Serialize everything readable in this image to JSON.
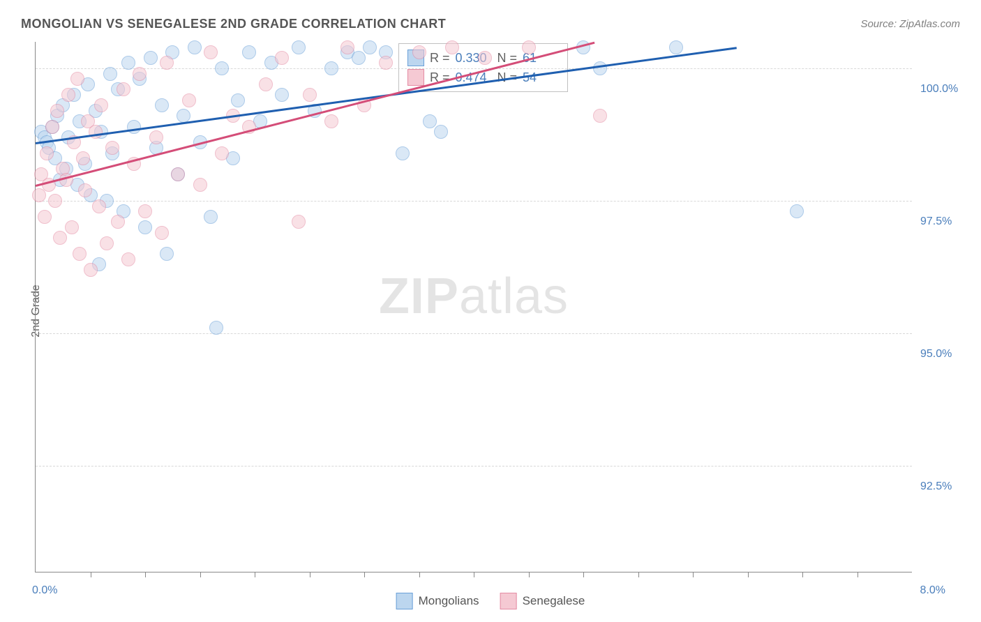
{
  "title": "MONGOLIAN VS SENEGALESE 2ND GRADE CORRELATION CHART",
  "source_label": "Source: ZipAtlas.com",
  "ylabel": "2nd Grade",
  "watermark_bold": "ZIP",
  "watermark_rest": "atlas",
  "chart": {
    "type": "scatter",
    "background_color": "#ffffff",
    "grid_color": "#d8d8d8",
    "axis_color": "#888888",
    "tick_label_color": "#4a7ebb",
    "label_color": "#606060",
    "title_color": "#555555",
    "title_fontsize": 18,
    "label_fontsize": 16,
    "marker_radius": 9,
    "marker_opacity": 0.55,
    "line_width": 3,
    "xlim": [
      0,
      8
    ],
    "ylim": [
      90.5,
      100.5
    ],
    "xtick_step": 0.5,
    "yticks": [
      92.5,
      95.0,
      97.5,
      100.0
    ],
    "ytick_format": "pct1",
    "x_min_label": "0.0%",
    "x_max_label": "8.0%",
    "series": [
      {
        "name": "Mongolians",
        "fill_color": "#bcd6ef",
        "stroke_color": "#6aa0d8",
        "swatch_fill": "#bcd6ef",
        "swatch_border": "#6aa0d8",
        "trend_color": "#1f5fb0",
        "R": "0.330",
        "N": "61",
        "trend": {
          "x1": 0.0,
          "y1": 98.6,
          "x2": 6.4,
          "y2": 100.4
        },
        "points": [
          [
            0.05,
            98.8
          ],
          [
            0.08,
            98.7
          ],
          [
            0.1,
            98.6
          ],
          [
            0.12,
            98.5
          ],
          [
            0.15,
            98.9
          ],
          [
            0.18,
            98.3
          ],
          [
            0.2,
            99.1
          ],
          [
            0.22,
            97.9
          ],
          [
            0.25,
            99.3
          ],
          [
            0.28,
            98.1
          ],
          [
            0.3,
            98.7
          ],
          [
            0.35,
            99.5
          ],
          [
            0.38,
            97.8
          ],
          [
            0.4,
            99.0
          ],
          [
            0.45,
            98.2
          ],
          [
            0.48,
            99.7
          ],
          [
            0.5,
            97.6
          ],
          [
            0.55,
            99.2
          ],
          [
            0.58,
            96.3
          ],
          [
            0.6,
            98.8
          ],
          [
            0.65,
            97.5
          ],
          [
            0.68,
            99.9
          ],
          [
            0.7,
            98.4
          ],
          [
            0.75,
            99.6
          ],
          [
            0.8,
            97.3
          ],
          [
            0.85,
            100.1
          ],
          [
            0.9,
            98.9
          ],
          [
            0.95,
            99.8
          ],
          [
            1.0,
            97.0
          ],
          [
            1.05,
            100.2
          ],
          [
            1.1,
            98.5
          ],
          [
            1.15,
            99.3
          ],
          [
            1.2,
            96.5
          ],
          [
            1.25,
            100.3
          ],
          [
            1.3,
            98.0
          ],
          [
            1.35,
            99.1
          ],
          [
            1.45,
            100.4
          ],
          [
            1.5,
            98.6
          ],
          [
            1.6,
            97.2
          ],
          [
            1.65,
            95.1
          ],
          [
            1.7,
            100.0
          ],
          [
            1.8,
            98.3
          ],
          [
            1.85,
            99.4
          ],
          [
            1.95,
            100.3
          ],
          [
            2.05,
            99.0
          ],
          [
            2.15,
            100.1
          ],
          [
            2.25,
            99.5
          ],
          [
            2.4,
            100.4
          ],
          [
            2.55,
            99.2
          ],
          [
            2.7,
            100.0
          ],
          [
            2.85,
            100.3
          ],
          [
            2.95,
            100.2
          ],
          [
            3.05,
            100.4
          ],
          [
            3.2,
            100.3
          ],
          [
            3.35,
            98.4
          ],
          [
            3.6,
            99.0
          ],
          [
            3.7,
            98.8
          ],
          [
            5.15,
            100.0
          ],
          [
            5.0,
            100.4
          ],
          [
            5.85,
            100.4
          ],
          [
            6.95,
            97.3
          ]
        ]
      },
      {
        "name": "Senegalese",
        "fill_color": "#f5c9d3",
        "stroke_color": "#e48ba3",
        "swatch_fill": "#f5c9d3",
        "swatch_border": "#e48ba3",
        "trend_color": "#d44d78",
        "R": "0.474",
        "N": "54",
        "trend": {
          "x1": 0.0,
          "y1": 97.8,
          "x2": 5.1,
          "y2": 100.5
        },
        "points": [
          [
            0.03,
            97.6
          ],
          [
            0.05,
            98.0
          ],
          [
            0.08,
            97.2
          ],
          [
            0.1,
            98.4
          ],
          [
            0.12,
            97.8
          ],
          [
            0.15,
            98.9
          ],
          [
            0.18,
            97.5
          ],
          [
            0.2,
            99.2
          ],
          [
            0.22,
            96.8
          ],
          [
            0.25,
            98.1
          ],
          [
            0.28,
            97.9
          ],
          [
            0.3,
            99.5
          ],
          [
            0.33,
            97.0
          ],
          [
            0.35,
            98.6
          ],
          [
            0.38,
            99.8
          ],
          [
            0.4,
            96.5
          ],
          [
            0.43,
            98.3
          ],
          [
            0.45,
            97.7
          ],
          [
            0.48,
            99.0
          ],
          [
            0.5,
            96.2
          ],
          [
            0.55,
            98.8
          ],
          [
            0.58,
            97.4
          ],
          [
            0.6,
            99.3
          ],
          [
            0.65,
            96.7
          ],
          [
            0.7,
            98.5
          ],
          [
            0.75,
            97.1
          ],
          [
            0.8,
            99.6
          ],
          [
            0.85,
            96.4
          ],
          [
            0.9,
            98.2
          ],
          [
            0.95,
            99.9
          ],
          [
            1.0,
            97.3
          ],
          [
            1.1,
            98.7
          ],
          [
            1.15,
            96.9
          ],
          [
            1.2,
            100.1
          ],
          [
            1.3,
            98.0
          ],
          [
            1.4,
            99.4
          ],
          [
            1.5,
            97.8
          ],
          [
            1.6,
            100.3
          ],
          [
            1.7,
            98.4
          ],
          [
            1.8,
            99.1
          ],
          [
            1.95,
            98.9
          ],
          [
            2.1,
            99.7
          ],
          [
            2.25,
            100.2
          ],
          [
            2.4,
            97.1
          ],
          [
            2.5,
            99.5
          ],
          [
            2.7,
            99.0
          ],
          [
            2.85,
            100.4
          ],
          [
            3.0,
            99.3
          ],
          [
            3.2,
            100.1
          ],
          [
            3.5,
            100.3
          ],
          [
            3.8,
            100.4
          ],
          [
            4.1,
            100.2
          ],
          [
            4.5,
            100.4
          ],
          [
            5.15,
            99.1
          ]
        ]
      }
    ]
  },
  "stats_box": {
    "R_label": "R =",
    "N_label": "N ="
  },
  "legend": {
    "label_a": "Mongolians",
    "label_b": "Senegalese"
  }
}
